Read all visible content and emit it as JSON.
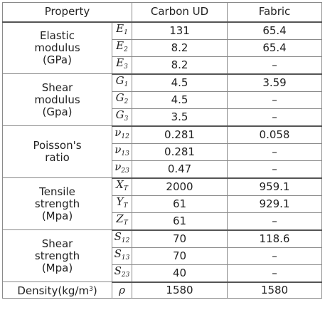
{
  "headers": {
    "property": "Property",
    "carbon": "Carbon UD",
    "fabric": "Fabric"
  },
  "groups": [
    {
      "label_lines": [
        "Elastic",
        "modulus",
        "(GPa)"
      ],
      "rows": [
        {
          "sym": "E",
          "sub": "1",
          "carbon": "131",
          "fabric": "65.4"
        },
        {
          "sym": "E",
          "sub": "2",
          "carbon": "8.2",
          "fabric": "65.4"
        },
        {
          "sym": "E",
          "sub": "3",
          "carbon": "8.2",
          "fabric": "–"
        }
      ]
    },
    {
      "label_lines": [
        "Shear",
        "modulus",
        "(Gpa)"
      ],
      "rows": [
        {
          "sym": "G",
          "sub": "1",
          "carbon": "4.5",
          "fabric": "3.59"
        },
        {
          "sym": "G",
          "sub": "2",
          "carbon": "4.5",
          "fabric": "–"
        },
        {
          "sym": "G",
          "sub": "3",
          "carbon": "3.5",
          "fabric": "–"
        }
      ]
    },
    {
      "label_lines": [
        "Poisson's",
        "ratio"
      ],
      "rows": [
        {
          "sym": "ν",
          "sub": "12",
          "carbon": "0.281",
          "fabric": "0.058"
        },
        {
          "sym": "ν",
          "sub": "13",
          "carbon": "0.281",
          "fabric": "–"
        },
        {
          "sym": "ν",
          "sub": "23",
          "carbon": "0.47",
          "fabric": "–"
        }
      ]
    },
    {
      "label_lines": [
        "Tensile",
        "strength",
        "(Mpa)"
      ],
      "rows": [
        {
          "sym": "X",
          "sub": "T",
          "carbon": "2000",
          "fabric": "959.1"
        },
        {
          "sym": "Y",
          "sub": "T",
          "carbon": "61",
          "fabric": "929.1"
        },
        {
          "sym": "Z",
          "sub": "T",
          "carbon": "61",
          "fabric": "–"
        }
      ]
    },
    {
      "label_lines": [
        "Shear",
        "strength",
        "(Mpa)"
      ],
      "rows": [
        {
          "sym": "S",
          "sub": "12",
          "carbon": "70",
          "fabric": "118.6"
        },
        {
          "sym": "S",
          "sub": "13",
          "carbon": "70",
          "fabric": "–"
        },
        {
          "sym": "S",
          "sub": "23",
          "carbon": "40",
          "fabric": "–"
        }
      ]
    }
  ],
  "density": {
    "label": "Density(kg/m",
    "label_sup": "3",
    "label_close": ")",
    "sym": "ρ",
    "carbon": "1580",
    "fabric": "1580"
  }
}
